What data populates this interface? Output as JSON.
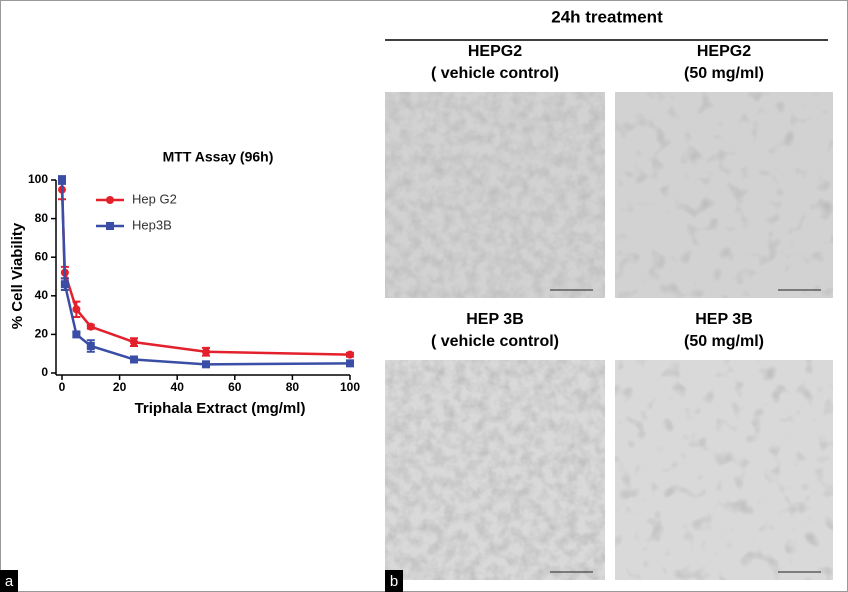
{
  "chart_data": {
    "type": "line",
    "title": "MTT Assay (96h)",
    "x_label": "Triphala Extract (mg/ml)",
    "y_label": "% Cell Viability",
    "x": [
      0,
      1,
      5,
      10,
      25,
      50,
      100
    ],
    "series": [
      {
        "name": "Hep G2",
        "color": "#e3202b",
        "marker": "circle",
        "values": [
          95,
          52,
          33,
          24,
          16,
          11,
          9.5
        ],
        "errors": [
          5,
          3,
          4,
          1,
          2,
          2,
          1
        ]
      },
      {
        "name": "Hep3B",
        "color": "#3a4ea6",
        "marker": "square",
        "values": [
          100,
          46,
          20,
          14,
          7,
          4.5,
          5
        ],
        "errors": [
          2,
          3,
          1,
          3,
          1,
          1,
          1
        ]
      }
    ],
    "xlim": [
      0,
      100
    ],
    "xticks": [
      0,
      20,
      40,
      60,
      80,
      100
    ],
    "ylim": [
      0,
      100
    ],
    "yticks": [
      0,
      20,
      40,
      60,
      80,
      100
    ],
    "grid": false
  },
  "panel_labels": [
    "a",
    "b"
  ],
  "panel_b": {
    "title": "24h treatment",
    "images": [
      {
        "lines": [
          "HEPG2",
          "( vehicle control)"
        ]
      },
      {
        "lines": [
          "HEPG2",
          "(50 mg/ml)"
        ]
      },
      {
        "lines": [
          "HEP 3B",
          "( vehicle control)"
        ]
      },
      {
        "lines": [
          "HEP 3B",
          "(50 mg/ml)"
        ]
      }
    ]
  }
}
